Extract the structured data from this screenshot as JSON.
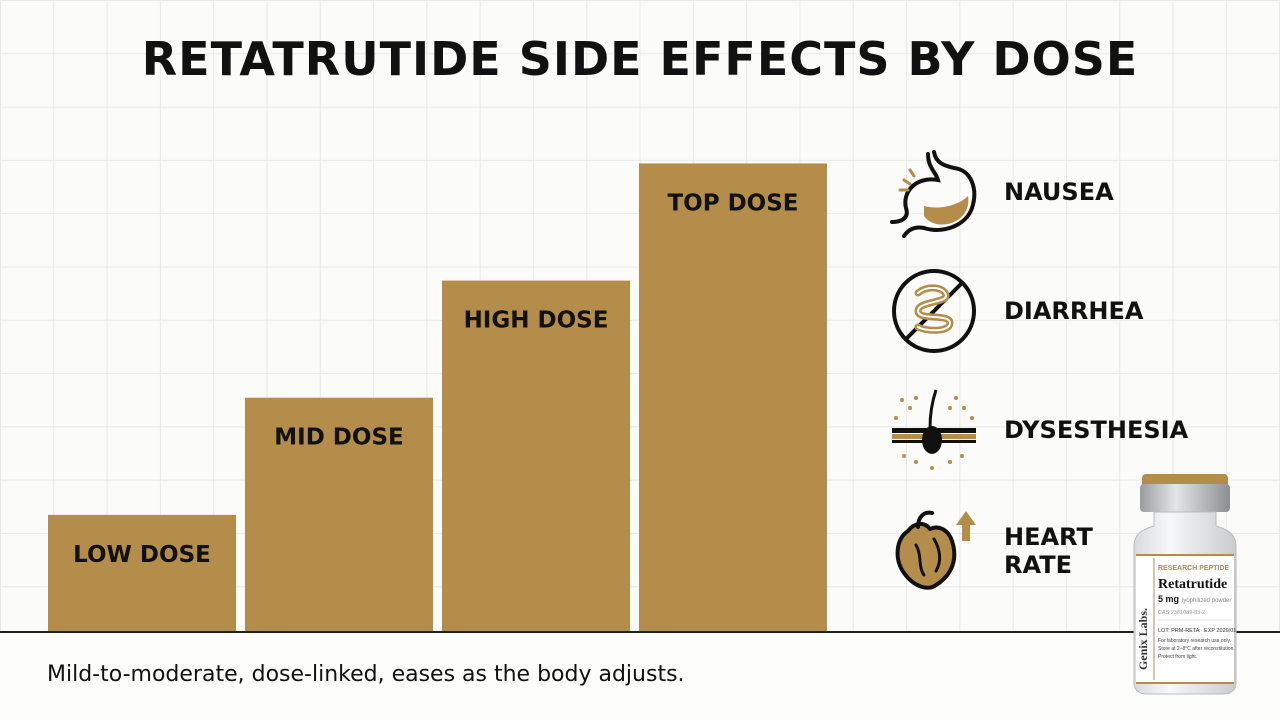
{
  "colors": {
    "bar": "#b58d4a",
    "accent": "#b58d4a",
    "ink": "#111111"
  },
  "chart_data": {
    "type": "bar",
    "title": "RETATRUTIDE SIDE EFFECTS BY DOSE",
    "categories": [
      "LOW DOSE",
      "MID DOSE",
      "HIGH DOSE",
      "TOP DOSE"
    ],
    "values": [
      1,
      2,
      3,
      4
    ],
    "ylim": [
      0,
      4.2
    ],
    "grid": true,
    "xlabel": "",
    "ylabel": ""
  },
  "legend": [
    {
      "label": "NAUSEA",
      "icon": "stomach-icon"
    },
    {
      "label": "DIARRHEA",
      "icon": "intestine-icon"
    },
    {
      "label": "DYSESTHESIA",
      "icon": "skin-nerve-icon"
    },
    {
      "label": "HEART\nRATE",
      "icon": "heart-rate-icon"
    }
  ],
  "caption": "Mild-to-moderate, dose-linked, eases as the body adjusts.",
  "vial": {
    "brand": "Genix Labs.",
    "tag": "RESEARCH PEPTIDE",
    "name": "Retatrutide",
    "dose": "5 mg",
    "form": "lyophilized powder",
    "cas": "CAS 2381089-83-2",
    "lot": "LOT: PRM-RETA · EXP 2029/01",
    "note1": "For laboratory research use only.",
    "note2": "Store at 2–8°C after reconstitution.",
    "note3": "Protect from light."
  }
}
